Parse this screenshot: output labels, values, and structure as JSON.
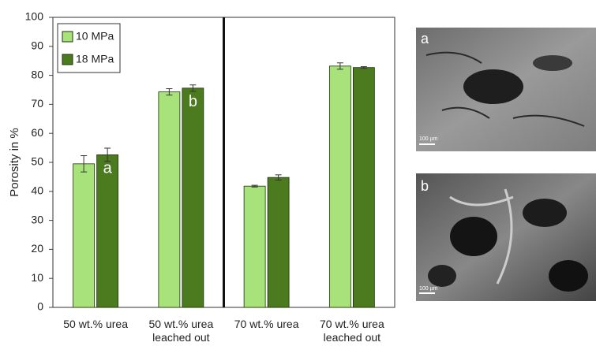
{
  "chart_data": {
    "type": "bar",
    "y_label": "Porosity in %",
    "categories": [
      "50 wt.%  urea",
      "50 wt.% urea leached out",
      "70 wt.% urea",
      "70 wt.% urea leached out"
    ],
    "series": [
      {
        "name": "10 MPa",
        "color": "#a8e27a",
        "values": [
          49.5,
          74.3,
          41.8,
          83.2
        ],
        "errors": [
          2.8,
          1.1,
          0.3,
          1.1
        ]
      },
      {
        "name": "18 MPa",
        "color": "#4b7a1f",
        "values": [
          52.6,
          75.6,
          44.8,
          82.7
        ],
        "errors": [
          2.3,
          1.1,
          0.9,
          0.3
        ]
      }
    ],
    "annotations": [
      "a",
      "b"
    ],
    "ylim": [
      0,
      100
    ],
    "yticks": [
      0,
      10,
      20,
      30,
      40,
      50,
      60,
      70,
      80,
      90,
      100
    ],
    "legend": "top-left"
  },
  "images": [
    {
      "label": "a",
      "scale": "100 µm"
    },
    {
      "label": "b",
      "scale": "100 µm"
    }
  ]
}
